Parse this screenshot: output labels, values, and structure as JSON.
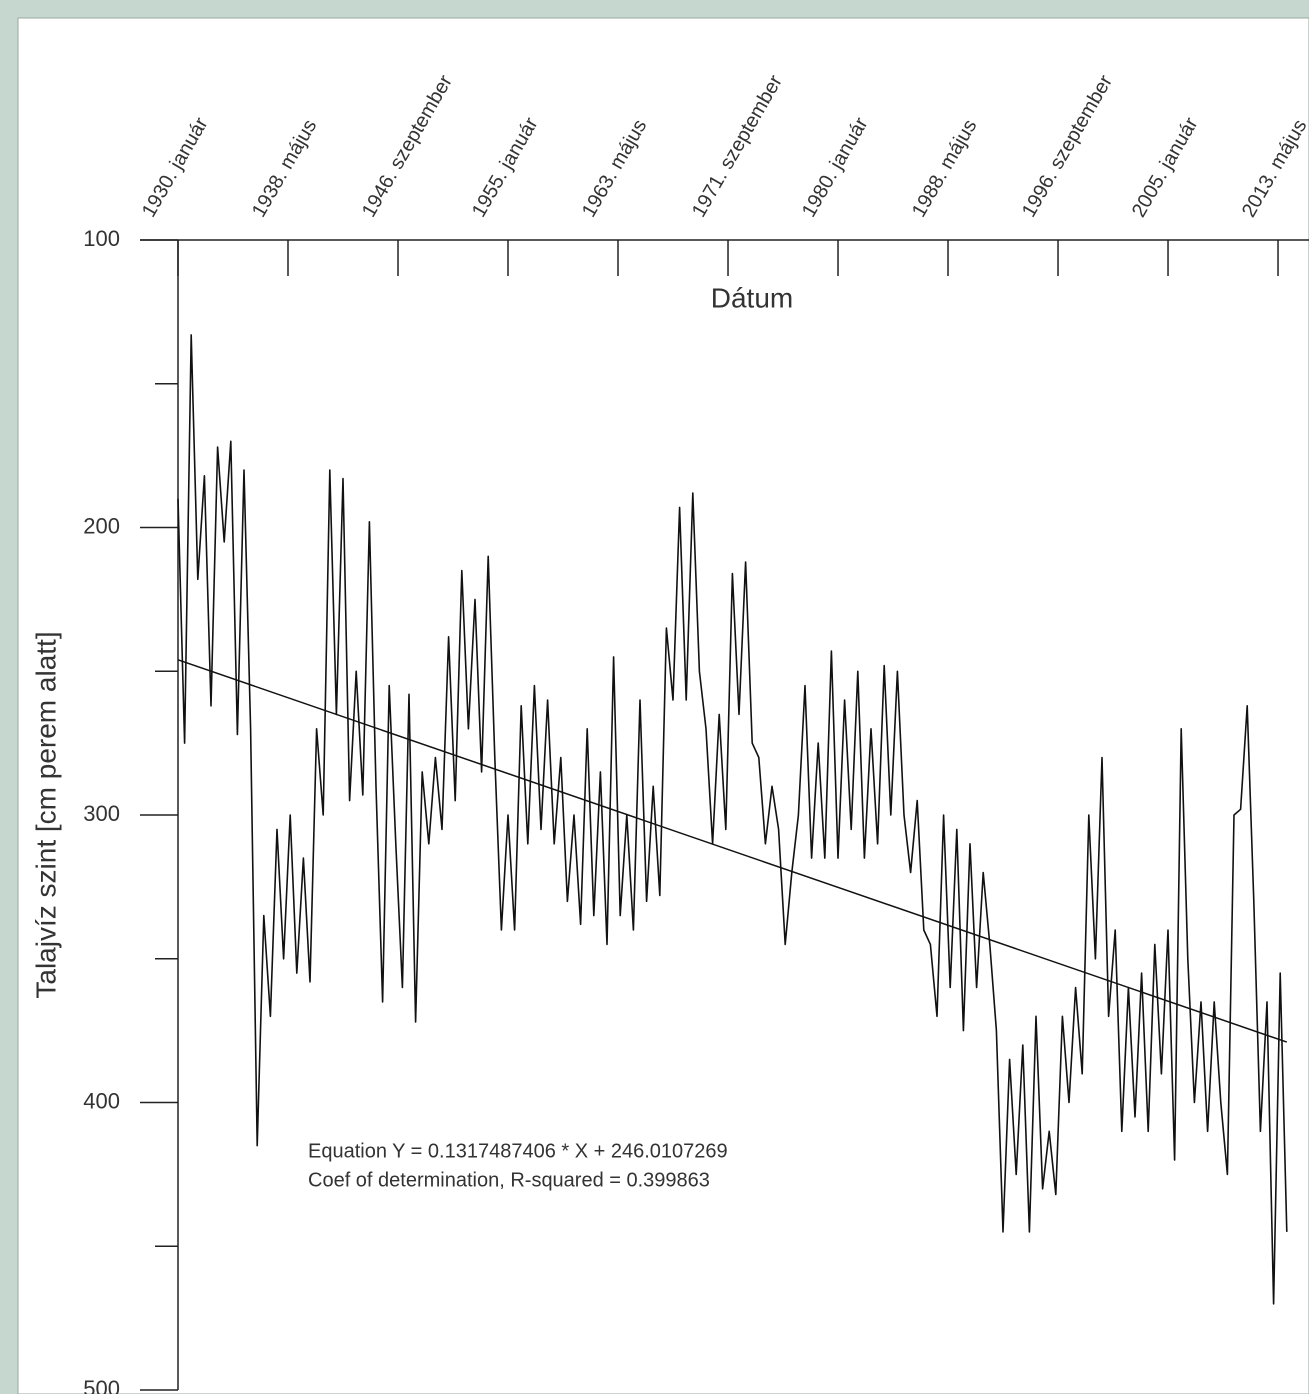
{
  "chart_data": {
    "type": "line",
    "title_y": "Talajvíz szint [cm perem alatt]",
    "title_x": "Dátum",
    "annotations": [
      "Equation Y = 0.1317487406 * X + 246.0107269",
      "Coef of determination, R-squared = 0.399863"
    ],
    "color": "#111111",
    "x": [
      1930,
      1930.5,
      1931,
      1931.5,
      1932,
      1932.5,
      1933,
      1933.5,
      1934,
      1934.5,
      1935,
      1935.5,
      1936,
      1936.5,
      1937,
      1937.5,
      1938,
      1938.5,
      1939,
      1939.5,
      1940,
      1940.5,
      1941,
      1941.5,
      1942,
      1942.5,
      1943,
      1943.5,
      1944,
      1944.5,
      1945,
      1945.5,
      1946,
      1946.5,
      1947,
      1947.5,
      1948,
      1948.5,
      1949,
      1949.5,
      1950,
      1950.5,
      1951,
      1951.5,
      1952,
      1952.5,
      1953,
      1953.5,
      1954,
      1954.5,
      1955,
      1955.5,
      1956,
      1956.5,
      1957,
      1957.5,
      1958,
      1958.5,
      1959,
      1959.5,
      1960,
      1960.5,
      1961,
      1961.5,
      1962,
      1962.5,
      1963,
      1963.5,
      1964,
      1964.5,
      1965,
      1965.5,
      1966,
      1966.5,
      1967,
      1967.5,
      1968,
      1968.5,
      1969,
      1969.5,
      1970,
      1970.5,
      1971,
      1971.5,
      1972,
      1972.5,
      1973,
      1973.5,
      1974,
      1974.5,
      1975,
      1975.5,
      1976,
      1976.5,
      1977,
      1977.5,
      1978,
      1978.5,
      1979,
      1979.5,
      1980,
      1980.5,
      1981,
      1981.5,
      1982,
      1982.5,
      1983,
      1983.5,
      1984,
      1984.5,
      1985,
      1985.5,
      1986,
      1986.5,
      1987,
      1987.5,
      1988,
      1988.5,
      1989,
      1989.5,
      1990,
      1990.5,
      1991,
      1991.5,
      1992,
      1992.5,
      1993,
      1993.5,
      1994,
      1994.5,
      1995,
      1995.5,
      1996,
      1996.5,
      1997,
      1997.5,
      1998,
      1998.5,
      1999,
      1999.5,
      2000,
      2000.5,
      2001,
      2001.5,
      2002,
      2002.5,
      2003,
      2003.5,
      2004,
      2004.5,
      2005,
      2005.5,
      2006,
      2006.5,
      2007,
      2007.5,
      2008,
      2008.5,
      2009,
      2009.5,
      2010,
      2010.5,
      2011,
      2011.5,
      2012,
      2012.5,
      2013,
      2013.5,
      2014
    ],
    "values": [
      190,
      275,
      133,
      218,
      182,
      262,
      172,
      205,
      170,
      272,
      180,
      270,
      415,
      335,
      370,
      305,
      350,
      300,
      355,
      315,
      358,
      270,
      300,
      180,
      265,
      183,
      295,
      250,
      293,
      198,
      290,
      365,
      255,
      310,
      360,
      258,
      372,
      285,
      310,
      280,
      305,
      238,
      295,
      215,
      270,
      225,
      285,
      210,
      280,
      340,
      300,
      340,
      262,
      310,
      255,
      305,
      260,
      310,
      280,
      330,
      300,
      338,
      270,
      335,
      285,
      345,
      245,
      335,
      300,
      340,
      260,
      330,
      290,
      328,
      235,
      260,
      193,
      260,
      188,
      250,
      270,
      310,
      265,
      305,
      216,
      265,
      212,
      275,
      280,
      310,
      290,
      305,
      345,
      320,
      300,
      255,
      315,
      275,
      315,
      243,
      315,
      260,
      305,
      250,
      315,
      270,
      310,
      248,
      300,
      250,
      300,
      320,
      295,
      340,
      345,
      370,
      300,
      360,
      305,
      375,
      310,
      360,
      320,
      345,
      375,
      445,
      385,
      425,
      380,
      445,
      370,
      430,
      410,
      432,
      370,
      400,
      360,
      390,
      300,
      350,
      280,
      370,
      340,
      410,
      360,
      405,
      355,
      410,
      345,
      390,
      340,
      420,
      270,
      350,
      400,
      365,
      410,
      365,
      400,
      425,
      300,
      298,
      262,
      330,
      410,
      365,
      470,
      355,
      445
    ],
    "trend": {
      "x": [
        1930,
        2014
      ],
      "values": [
        246,
        379
      ]
    },
    "xlim": [
      1930,
      2015.68
    ],
    "xticks": [
      {
        "value": 1930,
        "label": "1930. január"
      },
      {
        "value": 1938.333,
        "label": "1938. május"
      },
      {
        "value": 1946.667,
        "label": "1946. szeptember"
      },
      {
        "value": 1955,
        "label": "1955. január"
      },
      {
        "value": 1963.333,
        "label": "1963. május"
      },
      {
        "value": 1971.667,
        "label": "1971. szeptember"
      },
      {
        "value": 1980,
        "label": "1980. január"
      },
      {
        "value": 1988.333,
        "label": "1988. május"
      },
      {
        "value": 1996.667,
        "label": "1996. szeptember"
      },
      {
        "value": 2005,
        "label": "2005. január"
      },
      {
        "value": 2013.333,
        "label": "2013. május"
      }
    ],
    "ylim": [
      100,
      500
    ],
    "y_inverted": true,
    "yticks": [
      100,
      200,
      300,
      400,
      500
    ],
    "yminorticks": [
      150,
      250,
      350,
      450
    ]
  }
}
